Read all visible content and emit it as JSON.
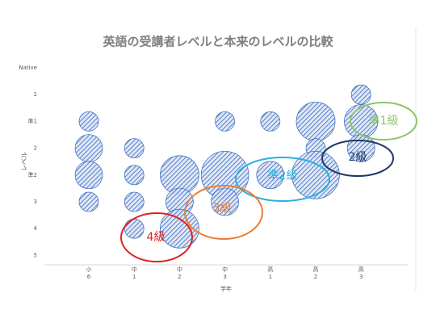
{
  "chart_data": {
    "type": "bubble",
    "title": "英語の受講者レベルと本来のレベルの比較",
    "x_label": "学年",
    "y_label": "レベル",
    "categories": [
      [
        "小",
        "6"
      ],
      [
        "中",
        "1"
      ],
      [
        "中",
        "2"
      ],
      [
        "中",
        "3"
      ],
      [
        "高",
        "1"
      ],
      [
        "高",
        "2"
      ],
      [
        "高",
        "3"
      ]
    ],
    "y_categories": [
      "Native",
      "1",
      "準1",
      "2",
      "準2",
      "3",
      "4",
      "5"
    ],
    "color": "#4472c4",
    "points": [
      {
        "x": 0,
        "y": 2,
        "size": 1
      },
      {
        "x": 0,
        "y": 3,
        "size": 2
      },
      {
        "x": 0,
        "y": 4,
        "size": 2
      },
      {
        "x": 0,
        "y": 5,
        "size": 1
      },
      {
        "x": 1,
        "y": 3,
        "size": 1
      },
      {
        "x": 1,
        "y": 4,
        "size": 1
      },
      {
        "x": 1,
        "y": 5,
        "size": 1
      },
      {
        "x": 1,
        "y": 6,
        "size": 1
      },
      {
        "x": 2,
        "y": 4,
        "size": 4
      },
      {
        "x": 2,
        "y": 5,
        "size": 2
      },
      {
        "x": 2,
        "y": 6,
        "size": 4
      },
      {
        "x": 3,
        "y": 2,
        "size": 1
      },
      {
        "x": 3,
        "y": 4,
        "size": 6
      },
      {
        "x": 3,
        "y": 5,
        "size": 2
      },
      {
        "x": 4,
        "y": 2,
        "size": 1
      },
      {
        "x": 4,
        "y": 4,
        "size": 2
      },
      {
        "x": 5,
        "y": 2,
        "size": 4
      },
      {
        "x": 5,
        "y": 3,
        "size": 1
      },
      {
        "x": 5,
        "y": 4,
        "size": 6
      },
      {
        "x": 6,
        "y": 1,
        "size": 1
      },
      {
        "x": 6,
        "y": 2,
        "size": 3
      },
      {
        "x": 6,
        "y": 3,
        "size": 2
      }
    ],
    "annotations": [
      {
        "text": "準1級",
        "color": "#8cc56a"
      },
      {
        "text": "2級",
        "color": "#1f3864"
      },
      {
        "text": "準2級",
        "color": "#2ab0e0"
      },
      {
        "text": "3級",
        "color": "#ed7d31"
      },
      {
        "text": "4級",
        "color": "#e02020"
      }
    ]
  }
}
